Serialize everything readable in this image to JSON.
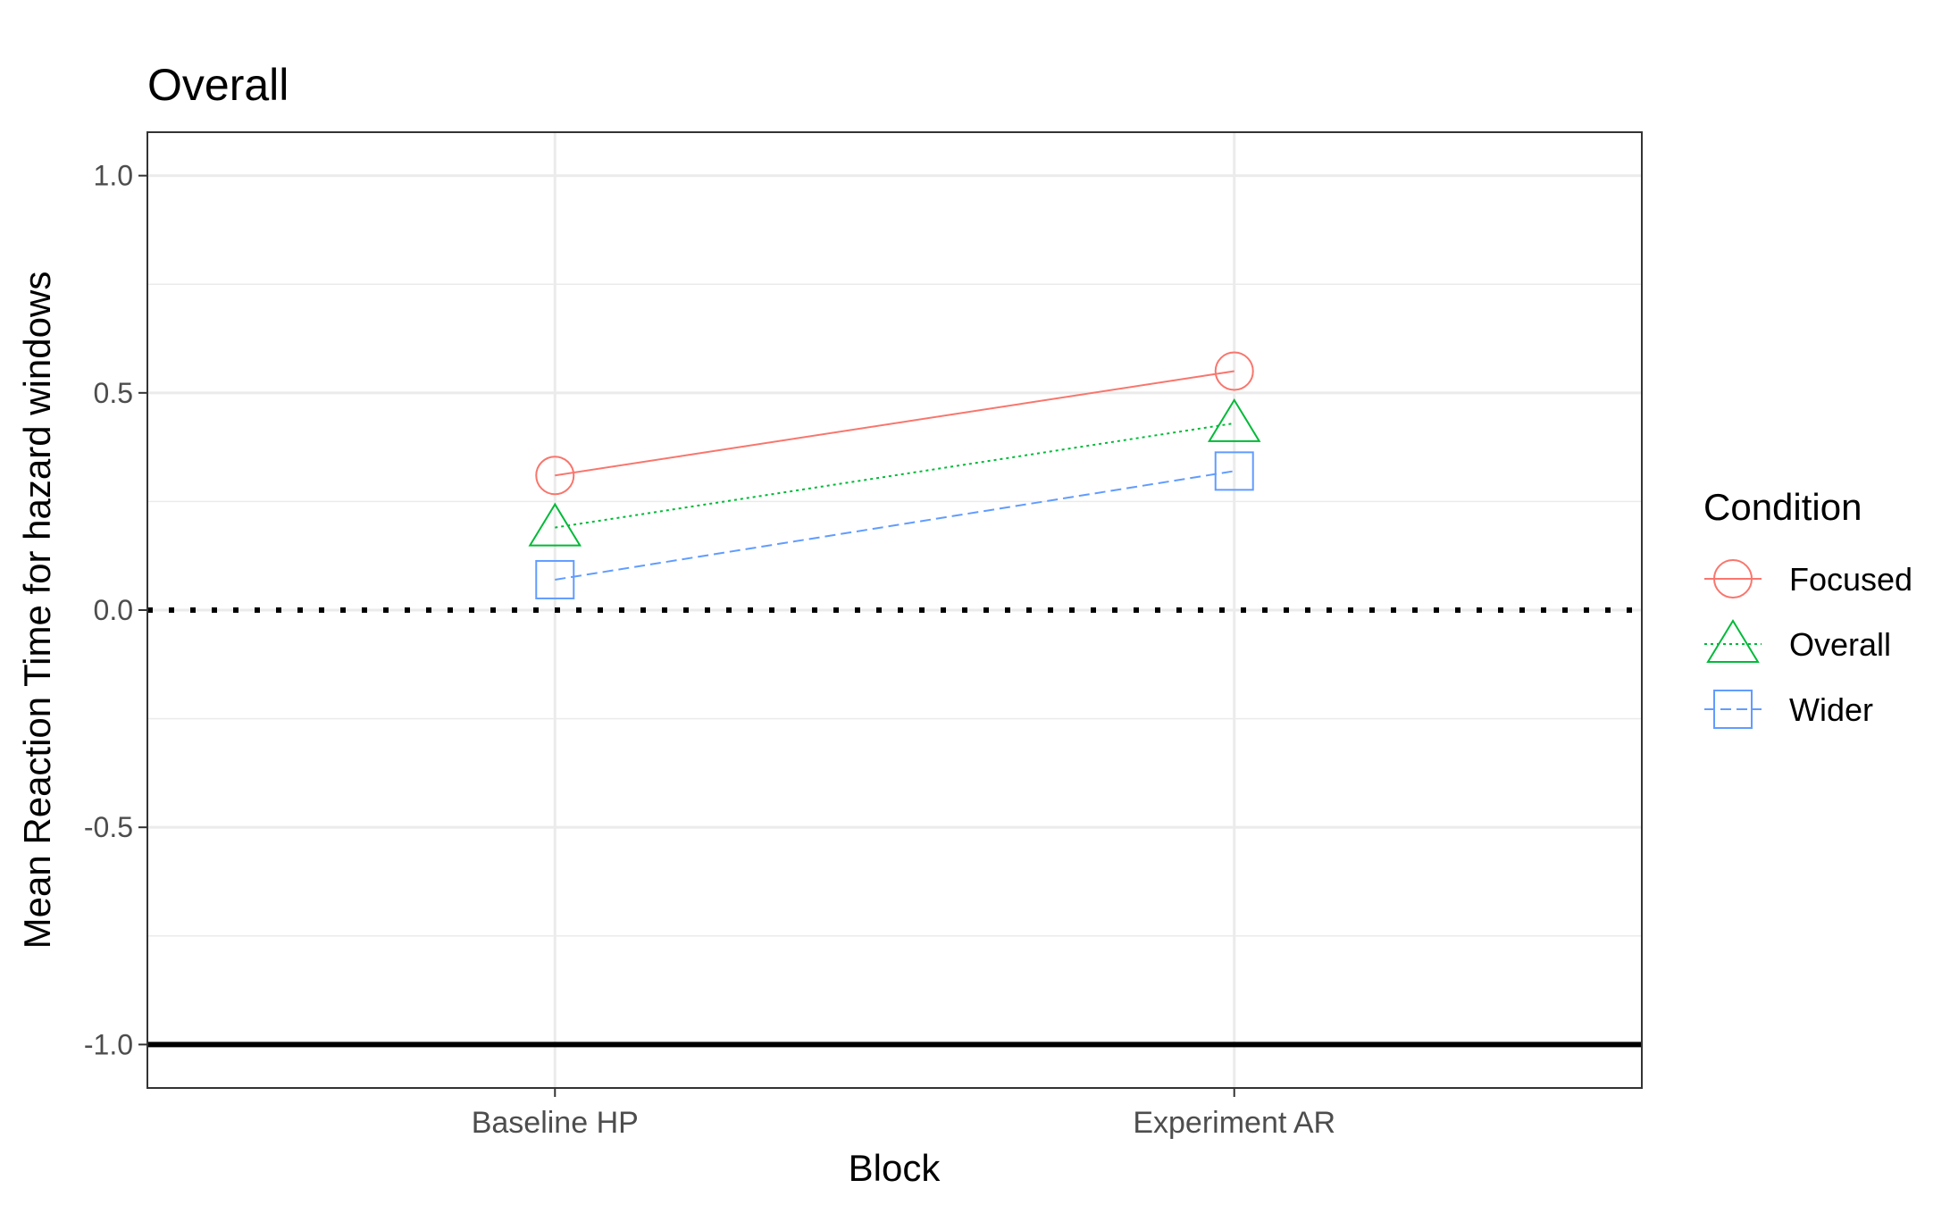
{
  "chart_data": {
    "type": "line",
    "title": "Overall",
    "xlabel": "Block",
    "ylabel": "Mean Reaction Time for hazard windows",
    "categories": [
      "Baseline HP",
      "Experiment AR"
    ],
    "ylim": [
      -1.1,
      1.1
    ],
    "yticks": [
      1.0,
      0.5,
      0.0,
      -0.5,
      -1.0
    ],
    "ytick_labels": [
      "1.0",
      "0.5",
      "0.0",
      "-0.5",
      "-1.0"
    ],
    "grid": true,
    "reference_lines": [
      {
        "y": 0.0,
        "style": "dotted",
        "color": "#000000"
      },
      {
        "y": -1.0,
        "style": "solid",
        "color": "#000000"
      }
    ],
    "legend": {
      "title": "Condition",
      "placement": "right"
    },
    "series": [
      {
        "name": "Focused",
        "values": [
          0.31,
          0.55
        ],
        "color": "#F8766D",
        "marker": "circle",
        "linestyle": "solid"
      },
      {
        "name": "Overall",
        "values": [
          0.19,
          0.43
        ],
        "color": "#00BA38",
        "marker": "triangle",
        "linestyle": "dotted"
      },
      {
        "name": "Wider",
        "values": [
          0.07,
          0.32
        ],
        "color": "#619CFF",
        "marker": "square",
        "linestyle": "dashed"
      }
    ]
  }
}
